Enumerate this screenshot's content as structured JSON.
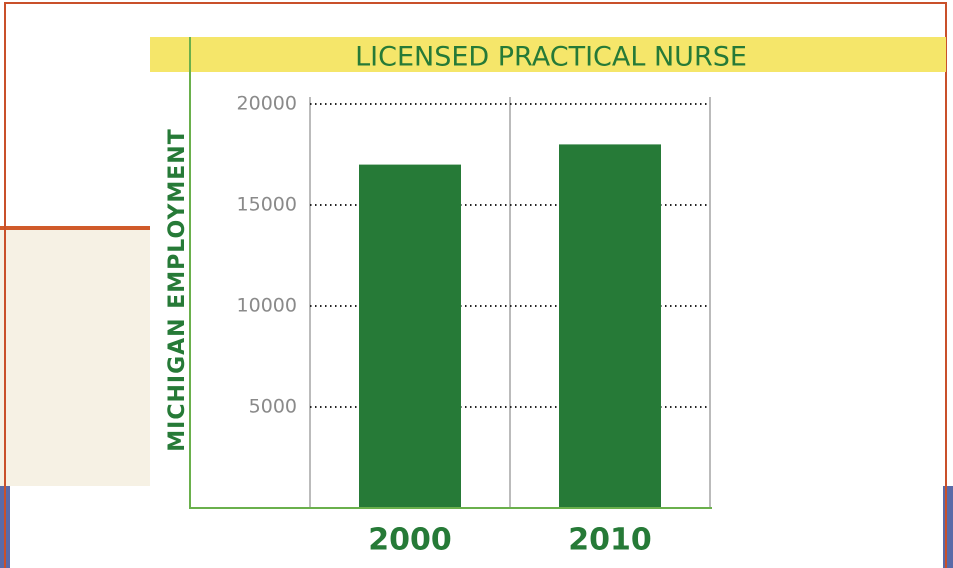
{
  "chart_data": {
    "type": "bar",
    "title": "LICENSED PRACTICAL NURSE",
    "ylabel": "MICHIGAN EMPLOYMENT",
    "categories": [
      "2000",
      "2010"
    ],
    "values": [
      17000,
      18000
    ],
    "color": "#267a37",
    "ylim": [
      0,
      20000
    ],
    "yticks": [
      5000,
      10000,
      15000,
      20000
    ],
    "grid": true
  }
}
